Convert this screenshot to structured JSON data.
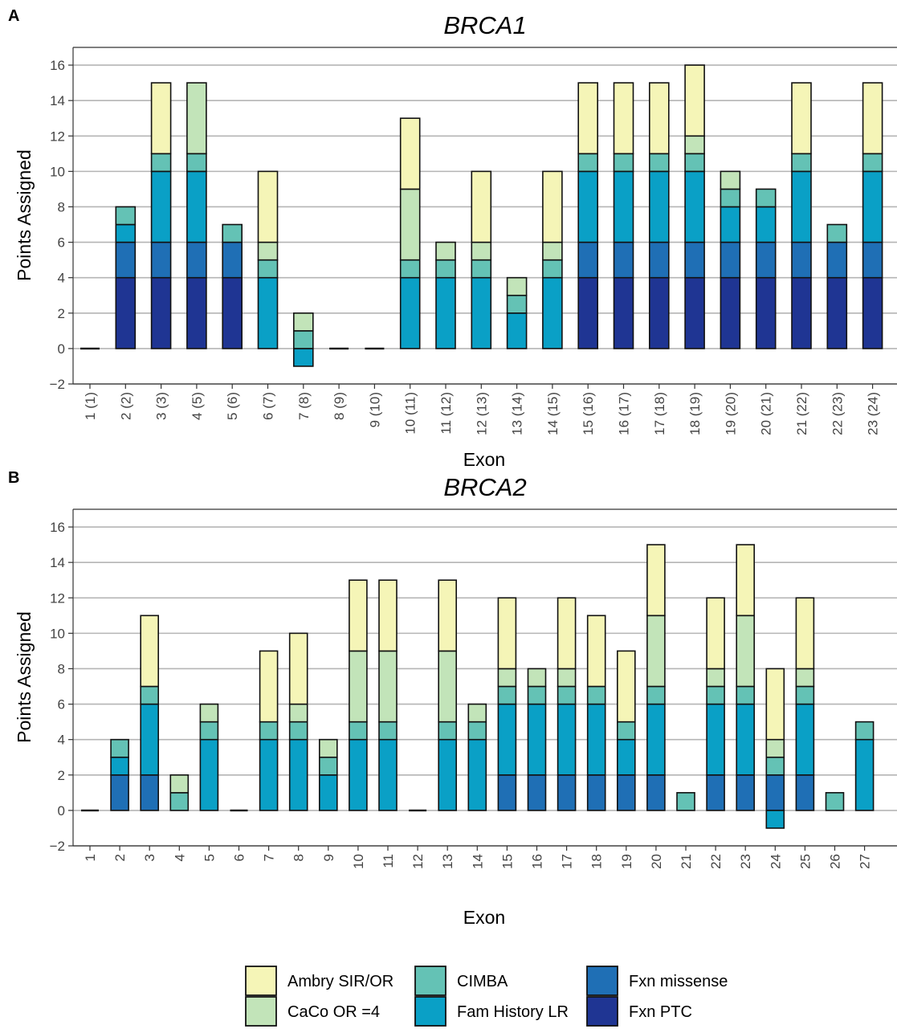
{
  "colors": {
    "Fxn PTC": "#1f3593",
    "Fxn missense": "#1f6fb5",
    "Fam History LR": "#0aa0c6",
    "CIMBA": "#64c2b5",
    "CaCo OR =4": "#c2e4b9",
    "Ambry SIR/OR": "#f5f5b7"
  },
  "legend": {
    "items": [
      "Ambry SIR/OR",
      "CaCo OR =4",
      "CIMBA",
      "Fam History LR",
      "Fxn missense",
      "Fxn PTC"
    ]
  },
  "chart_data": [
    {
      "type": "bar",
      "stacked": true,
      "panel": "A",
      "title": "BRCA1",
      "xlabel": "Exon",
      "ylabel": "Points Assigned",
      "ylim": [
        -2,
        17
      ],
      "yticks": [
        -2,
        0,
        2,
        4,
        6,
        8,
        10,
        12,
        14,
        16
      ],
      "grid": true,
      "categories": [
        "1 (1)",
        "2 (2)",
        "3 (3)",
        "4 (5)",
        "5 (6)",
        "6 (7)",
        "7 (8)",
        "8 (9)",
        "9 (10)",
        "10 (11)",
        "11 (12)",
        "12 (13)",
        "13 (14)",
        "14 (15)",
        "15 (16)",
        "16 (17)",
        "17 (18)",
        "18 (19)",
        "19 (20)",
        "20 (21)",
        "21 (22)",
        "22 (23)",
        "23 (24)"
      ],
      "series": [
        {
          "name": "Fxn PTC",
          "values": [
            0,
            4,
            4,
            4,
            4,
            0,
            0,
            0,
            0,
            0,
            0,
            0,
            0,
            0,
            4,
            4,
            4,
            4,
            4,
            4,
            4,
            4,
            4
          ]
        },
        {
          "name": "Fxn missense",
          "values": [
            0,
            2,
            2,
            2,
            2,
            0,
            0,
            0,
            0,
            0,
            0,
            0,
            0,
            0,
            2,
            2,
            2,
            2,
            2,
            2,
            2,
            2,
            2
          ]
        },
        {
          "name": "Fam History LR",
          "values": [
            0,
            1,
            4,
            4,
            0,
            4,
            -1,
            0,
            0,
            4,
            4,
            4,
            2,
            4,
            4,
            4,
            4,
            4,
            2,
            2,
            4,
            0,
            4
          ]
        },
        {
          "name": "CIMBA",
          "values": [
            0,
            1,
            1,
            1,
            1,
            1,
            1,
            0,
            0,
            1,
            1,
            1,
            1,
            1,
            1,
            1,
            1,
            1,
            1,
            1,
            1,
            1,
            1
          ]
        },
        {
          "name": "CaCo OR =4",
          "values": [
            0,
            0,
            0,
            4,
            0,
            1,
            1,
            0,
            0,
            4,
            1,
            1,
            1,
            1,
            0,
            0,
            0,
            1,
            1,
            0,
            0,
            0,
            0
          ]
        },
        {
          "name": "Ambry SIR/OR",
          "values": [
            0,
            0,
            4,
            0,
            0,
            4,
            0,
            0,
            0,
            4,
            0,
            4,
            0,
            4,
            4,
            4,
            4,
            4,
            0,
            0,
            4,
            0,
            4
          ]
        }
      ]
    },
    {
      "type": "bar",
      "stacked": true,
      "panel": "B",
      "title": "BRCA2",
      "xlabel": "Exon",
      "ylabel": "Points Assigned",
      "ylim": [
        -2,
        17
      ],
      "yticks": [
        -2,
        0,
        2,
        4,
        6,
        8,
        10,
        12,
        14,
        16
      ],
      "grid": true,
      "categories": [
        "1",
        "2",
        "3",
        "4",
        "5",
        "6",
        "7",
        "8",
        "9",
        "10",
        "11",
        "12",
        "13",
        "14",
        "15",
        "16",
        "17",
        "18",
        "19",
        "20",
        "21",
        "22",
        "23",
        "24",
        "25",
        "26",
        "27"
      ],
      "series": [
        {
          "name": "Fxn PTC",
          "values": [
            0,
            0,
            0,
            0,
            0,
            0,
            0,
            0,
            0,
            0,
            0,
            0,
            0,
            0,
            0,
            0,
            0,
            0,
            0,
            0,
            0,
            0,
            0,
            0,
            0,
            0,
            0
          ]
        },
        {
          "name": "Fxn missense",
          "values": [
            0,
            2,
            2,
            0,
            0,
            0,
            0,
            0,
            0,
            0,
            0,
            0,
            0,
            0,
            2,
            2,
            2,
            2,
            2,
            2,
            0,
            2,
            2,
            2,
            2,
            0,
            0
          ]
        },
        {
          "name": "Fam History LR",
          "values": [
            0,
            1,
            4,
            0,
            4,
            0,
            4,
            4,
            2,
            4,
            4,
            0,
            4,
            4,
            4,
            4,
            4,
            4,
            2,
            4,
            0,
            4,
            4,
            -1,
            4,
            0,
            4
          ]
        },
        {
          "name": "CIMBA",
          "values": [
            0,
            1,
            1,
            1,
            1,
            0,
            1,
            1,
            1,
            1,
            1,
            0,
            1,
            1,
            1,
            1,
            1,
            1,
            1,
            1,
            1,
            1,
            1,
            1,
            1,
            1,
            1
          ]
        },
        {
          "name": "CaCo OR =4",
          "values": [
            0,
            0,
            0,
            1,
            1,
            0,
            0,
            1,
            1,
            4,
            4,
            0,
            4,
            1,
            1,
            1,
            1,
            0,
            0,
            4,
            0,
            1,
            4,
            1,
            1,
            0,
            0
          ]
        },
        {
          "name": "Ambry SIR/OR",
          "values": [
            0,
            0,
            4,
            0,
            0,
            0,
            4,
            4,
            0,
            4,
            4,
            0,
            4,
            0,
            4,
            0,
            4,
            4,
            4,
            4,
            0,
            4,
            4,
            4,
            4,
            0,
            0
          ]
        }
      ]
    }
  ]
}
